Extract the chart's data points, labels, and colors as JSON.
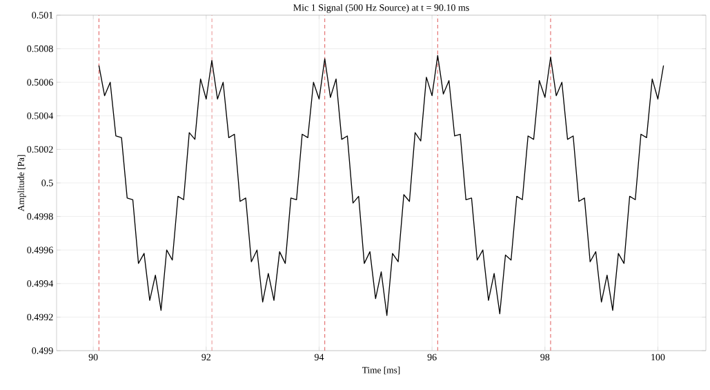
{
  "chart_data": {
    "type": "line",
    "title": "Mic 1 Signal (500 Hz Source) at t = 90.10 ms",
    "xlabel": "Time [ms]",
    "ylabel": "Amplitude [Pa]",
    "xlim": [
      89.35,
      100.85
    ],
    "xticks": [
      90,
      92,
      94,
      96,
      98,
      100
    ],
    "ylim": [
      0.499,
      0.501
    ],
    "yticks": [
      0.499,
      0.4992,
      0.4994,
      0.4996,
      0.4998,
      0.5,
      0.5002,
      0.5004,
      0.5006,
      0.5008,
      0.501
    ],
    "grid": true,
    "marker": "none",
    "line_style": "solid",
    "ref_lines": [
      {
        "axis": "x",
        "value": 90.1,
        "color": "#e06060",
        "line_style": "dashed"
      },
      {
        "axis": "x",
        "value": 92.1,
        "color": "#e06060",
        "line_style": "dashed"
      },
      {
        "axis": "x",
        "value": 94.1,
        "color": "#e06060",
        "line_style": "dashed"
      },
      {
        "axis": "x",
        "value": 96.1,
        "color": "#e06060",
        "line_style": "dashed"
      },
      {
        "axis": "x",
        "value": 98.1,
        "color": "#e06060",
        "line_style": "dashed"
      }
    ],
    "series": [
      {
        "color": "#000000",
        "x": [
          90.1,
          90.2,
          90.3,
          90.4,
          90.5,
          90.6,
          90.7,
          90.8,
          90.9,
          91.0,
          91.1,
          91.2,
          91.3,
          91.4,
          91.5,
          91.6,
          91.7,
          91.8,
          91.9,
          92.0,
          92.1,
          92.2,
          92.3,
          92.4,
          92.5,
          92.6,
          92.7,
          92.8,
          92.9,
          93.0,
          93.1,
          93.2,
          93.3,
          93.4,
          93.5,
          93.6,
          93.7,
          93.8,
          93.9,
          94.0,
          94.1,
          94.2,
          94.3,
          94.4,
          94.5,
          94.6,
          94.7,
          94.8,
          94.9,
          95.0,
          95.1,
          95.2,
          95.3,
          95.4,
          95.5,
          95.6,
          95.7,
          95.8,
          95.9,
          96.0,
          96.1,
          96.2,
          96.3,
          96.4,
          96.5,
          96.6,
          96.7,
          96.8,
          96.9,
          97.0,
          97.1,
          97.2,
          97.3,
          97.4,
          97.5,
          97.6,
          97.7,
          97.8,
          97.9,
          98.0,
          98.1,
          98.2,
          98.3,
          98.4,
          98.5,
          98.6,
          98.7,
          98.8,
          98.9,
          99.0,
          99.1,
          99.2,
          99.3,
          99.4,
          99.5,
          99.6,
          99.7,
          99.8,
          99.9,
          100.0,
          100.1
        ],
        "values": [
          0.5007,
          0.50052,
          0.5006,
          0.50028,
          0.50027,
          0.49991,
          0.4999,
          0.49952,
          0.49958,
          0.4993,
          0.49945,
          0.49924,
          0.4996,
          0.49954,
          0.49992,
          0.4999,
          0.5003,
          0.50026,
          0.50062,
          0.5005,
          0.50073,
          0.5005,
          0.5006,
          0.50027,
          0.50029,
          0.49989,
          0.49991,
          0.49953,
          0.4996,
          0.49929,
          0.49946,
          0.4993,
          0.49959,
          0.49952,
          0.49991,
          0.4999,
          0.50029,
          0.50027,
          0.5006,
          0.5005,
          0.50074,
          0.50051,
          0.50062,
          0.50026,
          0.50028,
          0.49988,
          0.49992,
          0.49952,
          0.49959,
          0.49931,
          0.49947,
          0.49921,
          0.49958,
          0.49953,
          0.49993,
          0.49989,
          0.5003,
          0.50025,
          0.50063,
          0.50052,
          0.50076,
          0.50053,
          0.50061,
          0.50028,
          0.50029,
          0.4999,
          0.49991,
          0.49954,
          0.4996,
          0.4993,
          0.49946,
          0.49922,
          0.49957,
          0.49954,
          0.49992,
          0.4999,
          0.50028,
          0.50026,
          0.50061,
          0.50051,
          0.50075,
          0.50052,
          0.5006,
          0.50026,
          0.50028,
          0.49989,
          0.49991,
          0.49953,
          0.49959,
          0.49929,
          0.49945,
          0.49924,
          0.49958,
          0.49952,
          0.49992,
          0.4999,
          0.50029,
          0.50027,
          0.50062,
          0.5005,
          0.5007
        ]
      }
    ]
  }
}
